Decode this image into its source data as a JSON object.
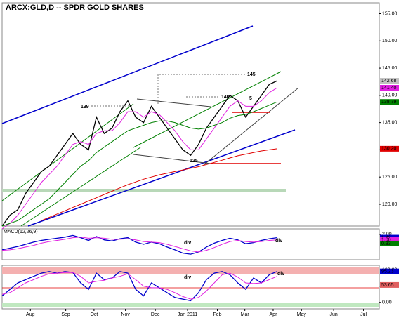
{
  "chart_data": [
    {
      "type": "line",
      "title": "ARCX:GLD,D -- SPDR GOLD SHARES",
      "xlim": [
        0,
        48
      ],
      "xticks": [
        {
          "value": 3.6,
          "label": "Aug"
        },
        {
          "value": 8.1,
          "label": "Sep"
        },
        {
          "value": 11.7,
          "label": "Oct"
        },
        {
          "value": 15.7,
          "label": "Nov"
        },
        {
          "value": 19.5,
          "label": "Dec"
        },
        {
          "value": 23.6,
          "label": "Jan 2011"
        },
        {
          "value": 27.4,
          "label": "Feb"
        },
        {
          "value": 30.9,
          "label": "Mar"
        },
        {
          "value": 34.5,
          "label": "Apr"
        },
        {
          "value": 38.1,
          "label": "May"
        },
        {
          "value": 42.2,
          "label": "Jun"
        },
        {
          "value": 46,
          "label": "Jul"
        }
      ],
      "ylim": [
        116,
        157
      ],
      "yticks": [
        {
          "value": 120,
          "label": "120.00"
        },
        {
          "value": 125,
          "label": "125.00"
        },
        {
          "value": 130,
          "label": "130.00"
        },
        {
          "value": 135,
          "label": "135.00"
        },
        {
          "value": 140,
          "label": "140.00"
        },
        {
          "value": 145,
          "label": "145.00"
        },
        {
          "value": 150,
          "label": "150.00"
        },
        {
          "value": 155,
          "label": "155.00"
        }
      ],
      "series": [
        {
          "color": "#000000",
          "values": [
            116,
            118,
            119,
            122,
            124,
            126,
            127,
            129,
            131,
            133,
            131,
            130,
            136,
            133,
            134,
            137,
            139,
            136,
            135,
            138,
            136,
            134,
            132,
            130,
            129,
            131,
            134,
            136,
            138,
            140,
            139,
            136,
            138,
            140,
            142,
            142.68
          ]
        },
        {
          "color": "#e020e0",
          "values": [
            115.5,
            116.5,
            118,
            120,
            122,
            124,
            125.5,
            127,
            129,
            131,
            131.5,
            131,
            133,
            133.5,
            133.5,
            135,
            137,
            137,
            136,
            137,
            136.5,
            135,
            133.5,
            131.5,
            130,
            130,
            132,
            134,
            136,
            138,
            139,
            138,
            138,
            139,
            140.5,
            141.4
          ]
        },
        {
          "color": "#008000",
          "values": [
            116,
            116.5,
            117,
            118,
            119,
            120,
            121,
            122.5,
            124,
            125.5,
            127,
            128,
            129.5,
            130.5,
            131.5,
            132.5,
            133.5,
            134,
            134.5,
            135,
            135.3,
            135.3,
            135,
            134.5,
            134,
            133.8,
            134,
            134.5,
            135,
            135.8,
            136.3,
            136.5,
            137,
            137.6,
            138.2,
            138.79
          ]
        },
        {
          "color": "#e00000",
          "values": [
            null,
            null,
            null,
            null,
            null,
            117,
            117.6,
            118.2,
            118.8,
            119.4,
            120,
            120.6,
            121.2,
            121.8,
            122.4,
            123,
            123.6,
            124.1,
            124.6,
            125,
            125.4,
            125.7,
            126,
            126.3,
            126.6,
            126.9,
            127.3,
            127.7,
            128.1,
            128.5,
            128.9,
            129.2,
            129.5,
            129.8,
            130,
            130.2
          ]
        }
      ],
      "tags": [
        {
          "value": 142.68,
          "label": "142.68",
          "color": "#c0c0c0"
        },
        {
          "value": 141.4,
          "label": "141.40",
          "color": "#e020e0"
        },
        {
          "value": 138.79,
          "label": "138.79",
          "color": "#008000"
        },
        {
          "value": 130.2,
          "label": "130.20",
          "color": "#e00000"
        }
      ],
      "annotations": [
        "145",
        "140",
        "139",
        "125",
        "5"
      ]
    },
    {
      "type": "line",
      "title": "MACD(12,26,9)",
      "ylim": [
        -2.6,
        3.0
      ],
      "yticks": [
        {
          "value": 2,
          "label": "2.00"
        }
      ],
      "series": [
        {
          "color": "#0000cc",
          "values": [
            -0.8,
            -0.5,
            -0.2,
            0.2,
            0.6,
            0.9,
            1.1,
            1.3,
            1.5,
            1.8,
            1.4,
            0.9,
            1.6,
            1.0,
            0.8,
            1.2,
            1.4,
            0.6,
            0.2,
            0.6,
            0.3,
            -0.3,
            -0.8,
            -1.4,
            -1.6,
            -1.2,
            -0.3,
            0.4,
            0.9,
            1.3,
            1.0,
            0.3,
            0.5,
            0.9,
            1.2,
            1.4
          ]
        },
        {
          "color": "#e020e0",
          "values": [
            -0.9,
            -0.8,
            -0.6,
            -0.3,
            0.0,
            0.4,
            0.7,
            0.9,
            1.1,
            1.4,
            1.5,
            1.3,
            1.4,
            1.3,
            1.1,
            1.1,
            1.2,
            1.0,
            0.7,
            0.6,
            0.5,
            0.2,
            -0.2,
            -0.6,
            -1.0,
            -1.2,
            -0.9,
            -0.4,
            0.2,
            0.7,
            0.9,
            0.7,
            0.6,
            0.7,
            0.9,
            1.0
          ]
        }
      ],
      "tags": [
        {
          "value": 1.4,
          "label": "1.40",
          "color": "#0000cc"
        },
        {
          "value": 1.0,
          "label": "1.00",
          "color": "#e020e0"
        },
        {
          "value": 0.33,
          "label": "0.33",
          "color": "#008000"
        }
      ],
      "annotations": [
        "div",
        "div"
      ]
    },
    {
      "type": "line",
      "ylim": [
        -20,
        114
      ],
      "yticks": [
        {
          "value": 0,
          "label": "0.00"
        },
        {
          "value": 50,
          "label": "50.00"
        },
        {
          "value": 100,
          "label": "100.00"
        }
      ],
      "series": [
        {
          "color": "#0000cc",
          "values": [
            20,
            40,
            60,
            70,
            80,
            90,
            95,
            90,
            95,
            92,
            60,
            40,
            90,
            70,
            75,
            95,
            90,
            40,
            20,
            60,
            45,
            30,
            15,
            10,
            5,
            30,
            70,
            90,
            95,
            85,
            60,
            40,
            75,
            60,
            85,
            95.23
          ]
        },
        {
          "color": "#e020e0",
          "values": [
            25,
            30,
            45,
            60,
            70,
            80,
            88,
            90,
            92,
            92,
            80,
            60,
            65,
            68,
            75,
            80,
            88,
            70,
            50,
            45,
            45,
            40,
            30,
            18,
            10,
            15,
            35,
            60,
            85,
            90,
            78,
            60,
            58,
            60,
            70,
            80
          ]
        }
      ],
      "tags": [
        {
          "value": 95.23,
          "label": "95.23",
          "color": "#0000cc"
        },
        {
          "value": 53.65,
          "label": "53.65",
          "color": "#e06060"
        }
      ],
      "annotations": [
        "div",
        "div"
      ]
    }
  ]
}
